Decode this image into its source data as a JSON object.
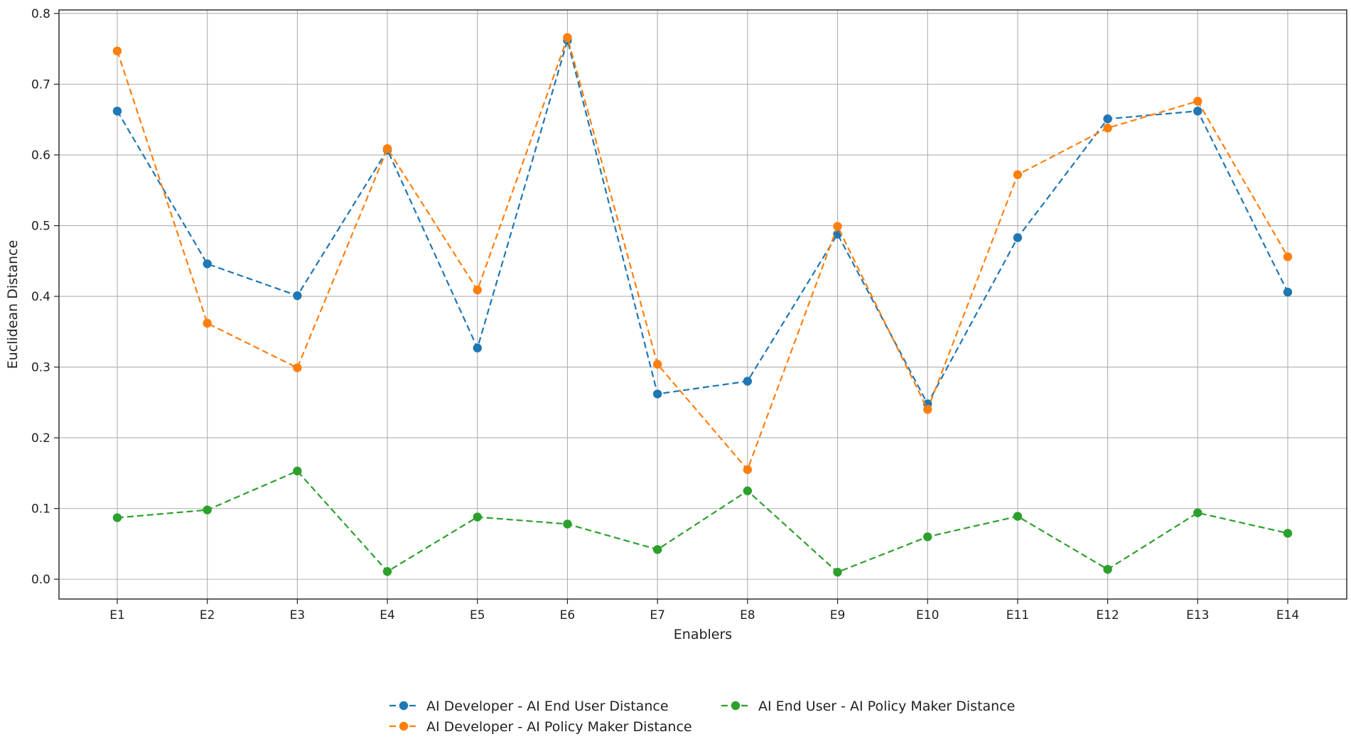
{
  "chart_data": {
    "type": "line",
    "title": "",
    "xlabel": "Enablers",
    "ylabel": "Euclidean Distance",
    "categories": [
      "E1",
      "E2",
      "E3",
      "E4",
      "E5",
      "E6",
      "E7",
      "E8",
      "E9",
      "E10",
      "E11",
      "E12",
      "E13",
      "E14"
    ],
    "ylim": [
      -0.028,
      0.805
    ],
    "yticks": [
      0.0,
      0.1,
      0.2,
      0.3,
      0.4,
      0.5,
      0.6,
      0.7,
      0.8
    ],
    "ytick_labels": [
      "0.0",
      "0.1",
      "0.2",
      "0.3",
      "0.4",
      "0.5",
      "0.6",
      "0.7",
      "0.8"
    ],
    "grid": true,
    "line_style": "dashed",
    "marker": "circle",
    "legend_position": "bottom-center",
    "series": [
      {
        "name": "AI Developer - AI End User Distance",
        "color": "#1f77b4",
        "values": [
          0.662,
          0.446,
          0.401,
          0.607,
          0.327,
          0.762,
          0.262,
          0.28,
          0.488,
          0.248,
          0.483,
          0.651,
          0.662,
          0.406
        ]
      },
      {
        "name": "AI Developer - AI Policy Maker Distance",
        "color": "#ff7f0e",
        "values": [
          0.747,
          0.362,
          0.299,
          0.609,
          0.409,
          0.766,
          0.304,
          0.155,
          0.499,
          0.24,
          0.572,
          0.638,
          0.676,
          0.456
        ]
      },
      {
        "name": "AI End User - AI Policy Maker Distance",
        "color": "#2ca02c",
        "values": [
          0.087,
          0.098,
          0.153,
          0.011,
          0.088,
          0.078,
          0.042,
          0.125,
          0.01,
          0.06,
          0.089,
          0.014,
          0.094,
          0.065
        ]
      }
    ]
  }
}
